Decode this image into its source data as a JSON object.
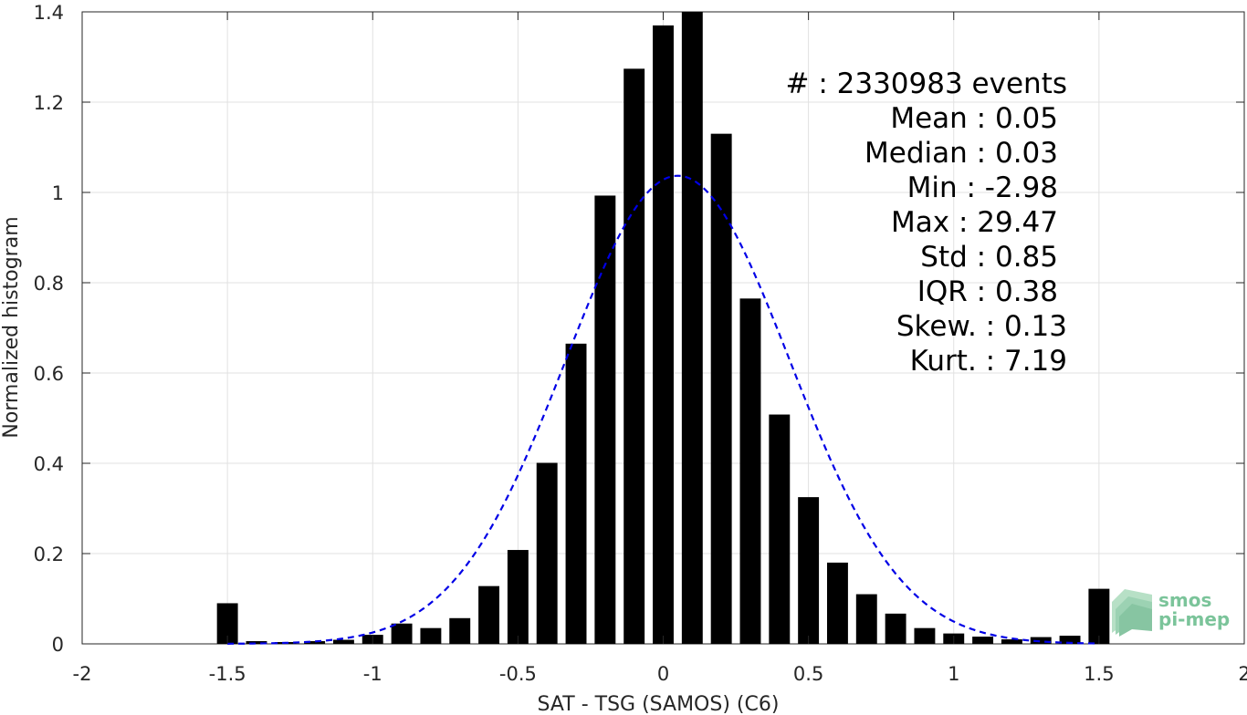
{
  "chart_data": {
    "type": "bar",
    "title": "",
    "xlabel": "SAT - TSG (SAMOS) (C6)",
    "ylabel": "Normalized histogram",
    "xlim": [
      -2,
      2
    ],
    "ylim": [
      0,
      1.4
    ],
    "xticks": [
      -2,
      -1.5,
      -1,
      -0.5,
      0,
      0.5,
      1,
      1.5,
      2
    ],
    "xtick_labels": [
      "-2",
      "-1.5",
      "-1",
      "-0.5",
      "0",
      "0.5",
      "1",
      "1.5",
      "2"
    ],
    "yticks": [
      0,
      0.2,
      0.4,
      0.6,
      0.8,
      1,
      1.2,
      1.4
    ],
    "ytick_labels": [
      "0",
      "0.2",
      "0.4",
      "0.6",
      "0.8",
      "1",
      "1.2",
      "1.4"
    ],
    "grid": true,
    "bar_color": "#000000",
    "bins": [
      {
        "x": -1.5,
        "value": 0.09
      },
      {
        "x": -1.4,
        "value": 0.006
      },
      {
        "x": -1.3,
        "value": 0.004
      },
      {
        "x": -1.2,
        "value": 0.006
      },
      {
        "x": -1.1,
        "value": 0.009
      },
      {
        "x": -1.0,
        "value": 0.02
      },
      {
        "x": -0.9,
        "value": 0.045
      },
      {
        "x": -0.8,
        "value": 0.035
      },
      {
        "x": -0.7,
        "value": 0.057
      },
      {
        "x": -0.6,
        "value": 0.128
      },
      {
        "x": -0.5,
        "value": 0.208
      },
      {
        "x": -0.4,
        "value": 0.401
      },
      {
        "x": -0.3,
        "value": 0.665
      },
      {
        "x": -0.2,
        "value": 0.993
      },
      {
        "x": -0.1,
        "value": 1.274
      },
      {
        "x": 0.0,
        "value": 1.37
      },
      {
        "x": 0.1,
        "value": 1.4
      },
      {
        "x": 0.2,
        "value": 1.13
      },
      {
        "x": 0.3,
        "value": 0.765
      },
      {
        "x": 0.4,
        "value": 0.508
      },
      {
        "x": 0.5,
        "value": 0.325
      },
      {
        "x": 0.6,
        "value": 0.18
      },
      {
        "x": 0.7,
        "value": 0.11
      },
      {
        "x": 0.8,
        "value": 0.067
      },
      {
        "x": 0.9,
        "value": 0.035
      },
      {
        "x": 1.0,
        "value": 0.023
      },
      {
        "x": 1.1,
        "value": 0.016
      },
      {
        "x": 1.2,
        "value": 0.01
      },
      {
        "x": 1.3,
        "value": 0.015
      },
      {
        "x": 1.4,
        "value": 0.018
      },
      {
        "x": 1.5,
        "value": 0.122
      }
    ],
    "fit_curve": {
      "style": "dashed",
      "color": "#0000e6",
      "mean": 0.05,
      "std": 0.385,
      "peak": 1.037,
      "x_range": [
        -1.5,
        1.5
      ]
    },
    "annotations": [
      {
        "label": "#",
        "separator": " : ",
        "value": "2330983 events"
      },
      {
        "label": "Mean",
        "separator": " : ",
        "value": "0.05"
      },
      {
        "label": "Median",
        "separator": " : ",
        "value": "0.03"
      },
      {
        "label": "Min",
        "separator": " : ",
        "value": "-2.98"
      },
      {
        "label": "Max",
        "separator": " : ",
        "value": "29.47"
      },
      {
        "label": "Std",
        "separator": " : ",
        "value": "0.85"
      },
      {
        "label": "IQR",
        "separator": " : ",
        "value": "0.38"
      },
      {
        "label": "Skew.",
        "separator": " : ",
        "value": "0.13"
      },
      {
        "label": "Kurt.",
        "separator": " : ",
        "value": "7.19"
      }
    ]
  },
  "logo": {
    "line1": "smos",
    "line2": "pi-mep",
    "color": "#7bc49a"
  }
}
